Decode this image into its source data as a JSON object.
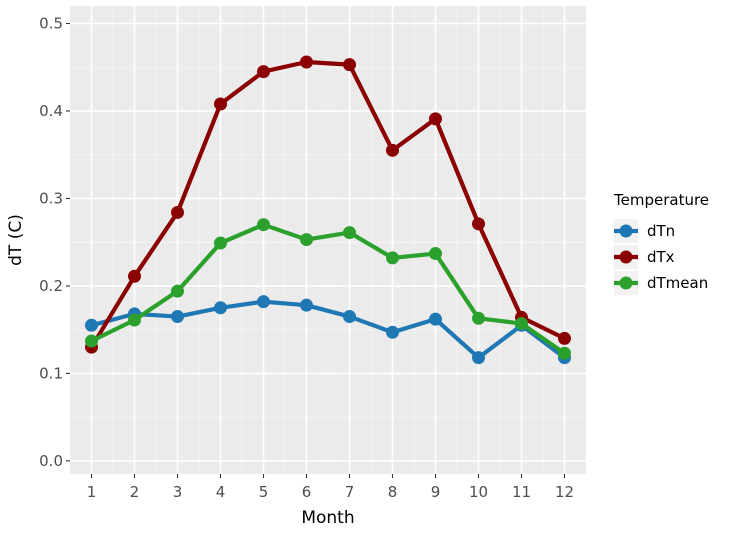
{
  "chart_data": {
    "type": "line",
    "xlabel": "Month",
    "ylabel": "dT (C)",
    "x": [
      1,
      2,
      3,
      4,
      5,
      6,
      7,
      8,
      9,
      10,
      11,
      12
    ],
    "x_tick_labels": [
      "1",
      "2",
      "3",
      "4",
      "5",
      "6",
      "7",
      "8",
      "9",
      "10",
      "11",
      "12"
    ],
    "xlim": [
      0.5,
      12.5
    ],
    "ylim": [
      -0.015,
      0.52
    ],
    "y_ticks": [
      0.0,
      0.1,
      0.2,
      0.3,
      0.4,
      0.5
    ],
    "y_tick_labels": [
      "0.0",
      "0.1",
      "0.2",
      "0.3",
      "0.4",
      "0.5"
    ],
    "grid": true,
    "legend_title": "Temperature",
    "legend_position": "right",
    "series": [
      {
        "name": "dTn",
        "color": "#1f77b4",
        "values": [
          0.155,
          0.168,
          0.165,
          0.175,
          0.182,
          0.178,
          0.165,
          0.147,
          0.162,
          0.118,
          0.155,
          0.118
        ]
      },
      {
        "name": "dTx",
        "color": "#8b0000",
        "values": [
          0.13,
          0.211,
          0.284,
          0.408,
          0.445,
          0.456,
          0.453,
          0.355,
          0.391,
          0.271,
          0.164,
          0.14
        ]
      },
      {
        "name": "dTmean",
        "color": "#2ca02c",
        "values": [
          0.137,
          0.161,
          0.194,
          0.249,
          0.27,
          0.253,
          0.261,
          0.232,
          0.237,
          0.163,
          0.157,
          0.123
        ]
      }
    ]
  }
}
